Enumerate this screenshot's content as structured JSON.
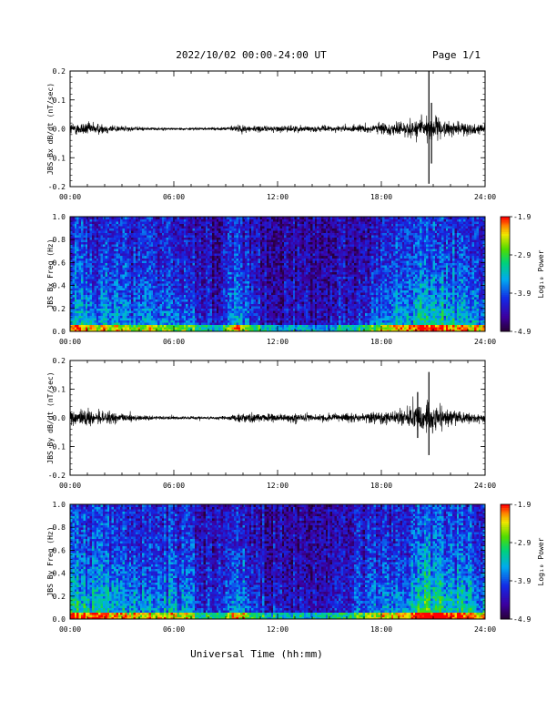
{
  "header": {
    "title": "2022/10/02  00:00-24:00 UT",
    "page": "Page 1/1"
  },
  "chart_data": [
    {
      "type": "line",
      "ylabel": "JBS Bx dB/dt (nT/sec)",
      "xlim": [
        0,
        24
      ],
      "ylim": [
        -0.2,
        0.2
      ],
      "x_ticks": [
        "00:00",
        "06:00",
        "12:00",
        "18:00",
        "24:00"
      ],
      "y_ticks": [
        "0.2",
        "0.1",
        "0.0",
        "-0.1",
        "-0.2"
      ],
      "y_tick_values": [
        0.2,
        0.1,
        0.0,
        -0.1,
        -0.2
      ],
      "envelope": {
        "hours": [
          0,
          1,
          2,
          3,
          4,
          5,
          6,
          7,
          8,
          9,
          9.5,
          10,
          11,
          12,
          13,
          14,
          15,
          16,
          17,
          18,
          19,
          20,
          20.5,
          20.8,
          21,
          21.5,
          22,
          23,
          24
        ],
        "amplitude": [
          0.03,
          0.035,
          0.025,
          0.015,
          0.01,
          0.008,
          0.006,
          0.007,
          0.006,
          0.008,
          0.02,
          0.02,
          0.015,
          0.015,
          0.018,
          0.015,
          0.015,
          0.015,
          0.02,
          0.03,
          0.035,
          0.05,
          0.07,
          0.08,
          0.06,
          0.045,
          0.035,
          0.03,
          0.025
        ]
      },
      "spikes": [
        {
          "hour": 20.75,
          "y_max": 0.2,
          "y_min": -0.19
        },
        {
          "hour": 20.9,
          "y_max": 0.09,
          "y_min": -0.12
        }
      ]
    },
    {
      "type": "heatmap",
      "ylabel": "JBS Bx Freq (Hz)",
      "colorbar_label": "Log₁₀ Power",
      "colorbar_ticks": [
        "-1.9",
        "-2.9",
        "-3.9",
        "-4.9"
      ],
      "clim": [
        -4.9,
        -1.9
      ],
      "xlim": [
        0,
        24
      ],
      "ylim": [
        0,
        1.0
      ],
      "x_ticks": [
        "00:00",
        "06:00",
        "12:00",
        "18:00",
        "24:00"
      ],
      "y_ticks": [
        "1.0",
        "0.8",
        "0.6",
        "0.4",
        "0.2",
        "0.0"
      ],
      "activity": {
        "hours": [
          0,
          1,
          2,
          3,
          4,
          5,
          6,
          7,
          7.5,
          8,
          9,
          9.5,
          10,
          11,
          12,
          13,
          14,
          15,
          16,
          17,
          18,
          19,
          20,
          20.5,
          21,
          22,
          23,
          24
        ],
        "level": [
          0.55,
          0.55,
          0.5,
          0.45,
          0.42,
          0.42,
          0.4,
          0.4,
          0.2,
          0.2,
          0.25,
          0.55,
          0.45,
          0.2,
          0.15,
          0.12,
          0.15,
          0.15,
          0.2,
          0.3,
          0.45,
          0.5,
          0.6,
          0.75,
          0.7,
          0.6,
          0.55,
          0.5
        ]
      }
    },
    {
      "type": "line",
      "ylabel": "JBS By dB/dt (nT/sec)",
      "xlim": [
        0,
        24
      ],
      "ylim": [
        -0.2,
        0.2
      ],
      "x_ticks": [
        "00:00",
        "06:00",
        "12:00",
        "18:00",
        "24:00"
      ],
      "y_ticks": [
        "0.2",
        "0.1",
        "0.0",
        "-0.1",
        "-0.2"
      ],
      "y_tick_values": [
        0.2,
        0.1,
        0.0,
        -0.1,
        -0.2
      ],
      "envelope": {
        "hours": [
          0,
          1,
          2,
          3,
          4,
          5,
          6,
          7,
          8,
          9,
          9.5,
          10,
          11,
          12,
          13,
          14,
          15,
          16,
          17,
          18,
          19,
          20,
          20.5,
          20.8,
          21,
          21.5,
          22,
          23,
          24
        ],
        "amplitude": [
          0.035,
          0.04,
          0.035,
          0.02,
          0.015,
          0.01,
          0.008,
          0.008,
          0.008,
          0.01,
          0.025,
          0.025,
          0.02,
          0.02,
          0.022,
          0.02,
          0.02,
          0.02,
          0.025,
          0.035,
          0.04,
          0.055,
          0.075,
          0.085,
          0.07,
          0.05,
          0.04,
          0.03,
          0.025
        ]
      },
      "spikes": [
        {
          "hour": 20.75,
          "y_max": 0.16,
          "y_min": -0.13
        },
        {
          "hour": 20.1,
          "y_max": 0.09,
          "y_min": -0.07
        }
      ]
    },
    {
      "type": "heatmap",
      "ylabel": "JBS By Freq (Hz)",
      "xlabel": "Universal Time (hh:mm)",
      "colorbar_label": "Log₁₀ Power",
      "colorbar_ticks": [
        "-1.9",
        "-2.9",
        "-3.9",
        "-4.9"
      ],
      "clim": [
        -4.9,
        -1.9
      ],
      "xlim": [
        0,
        24
      ],
      "ylim": [
        0,
        1.0
      ],
      "x_ticks": [
        "00:00",
        "06:00",
        "12:00",
        "18:00",
        "24:00"
      ],
      "y_ticks": [
        "1.0",
        "0.8",
        "0.6",
        "0.4",
        "0.2",
        "0.0"
      ],
      "activity": {
        "hours": [
          0,
          1,
          2,
          3,
          4,
          5,
          6,
          7,
          7.5,
          8,
          9,
          9.5,
          10,
          11,
          12,
          13,
          14,
          15,
          16,
          17,
          18,
          19,
          20,
          20.5,
          21,
          22,
          23,
          24
        ],
        "level": [
          0.65,
          0.65,
          0.6,
          0.55,
          0.5,
          0.5,
          0.5,
          0.45,
          0.25,
          0.25,
          0.3,
          0.6,
          0.5,
          0.25,
          0.2,
          0.15,
          0.2,
          0.2,
          0.25,
          0.35,
          0.5,
          0.55,
          0.65,
          0.8,
          0.75,
          0.65,
          0.6,
          0.55
        ]
      }
    }
  ]
}
